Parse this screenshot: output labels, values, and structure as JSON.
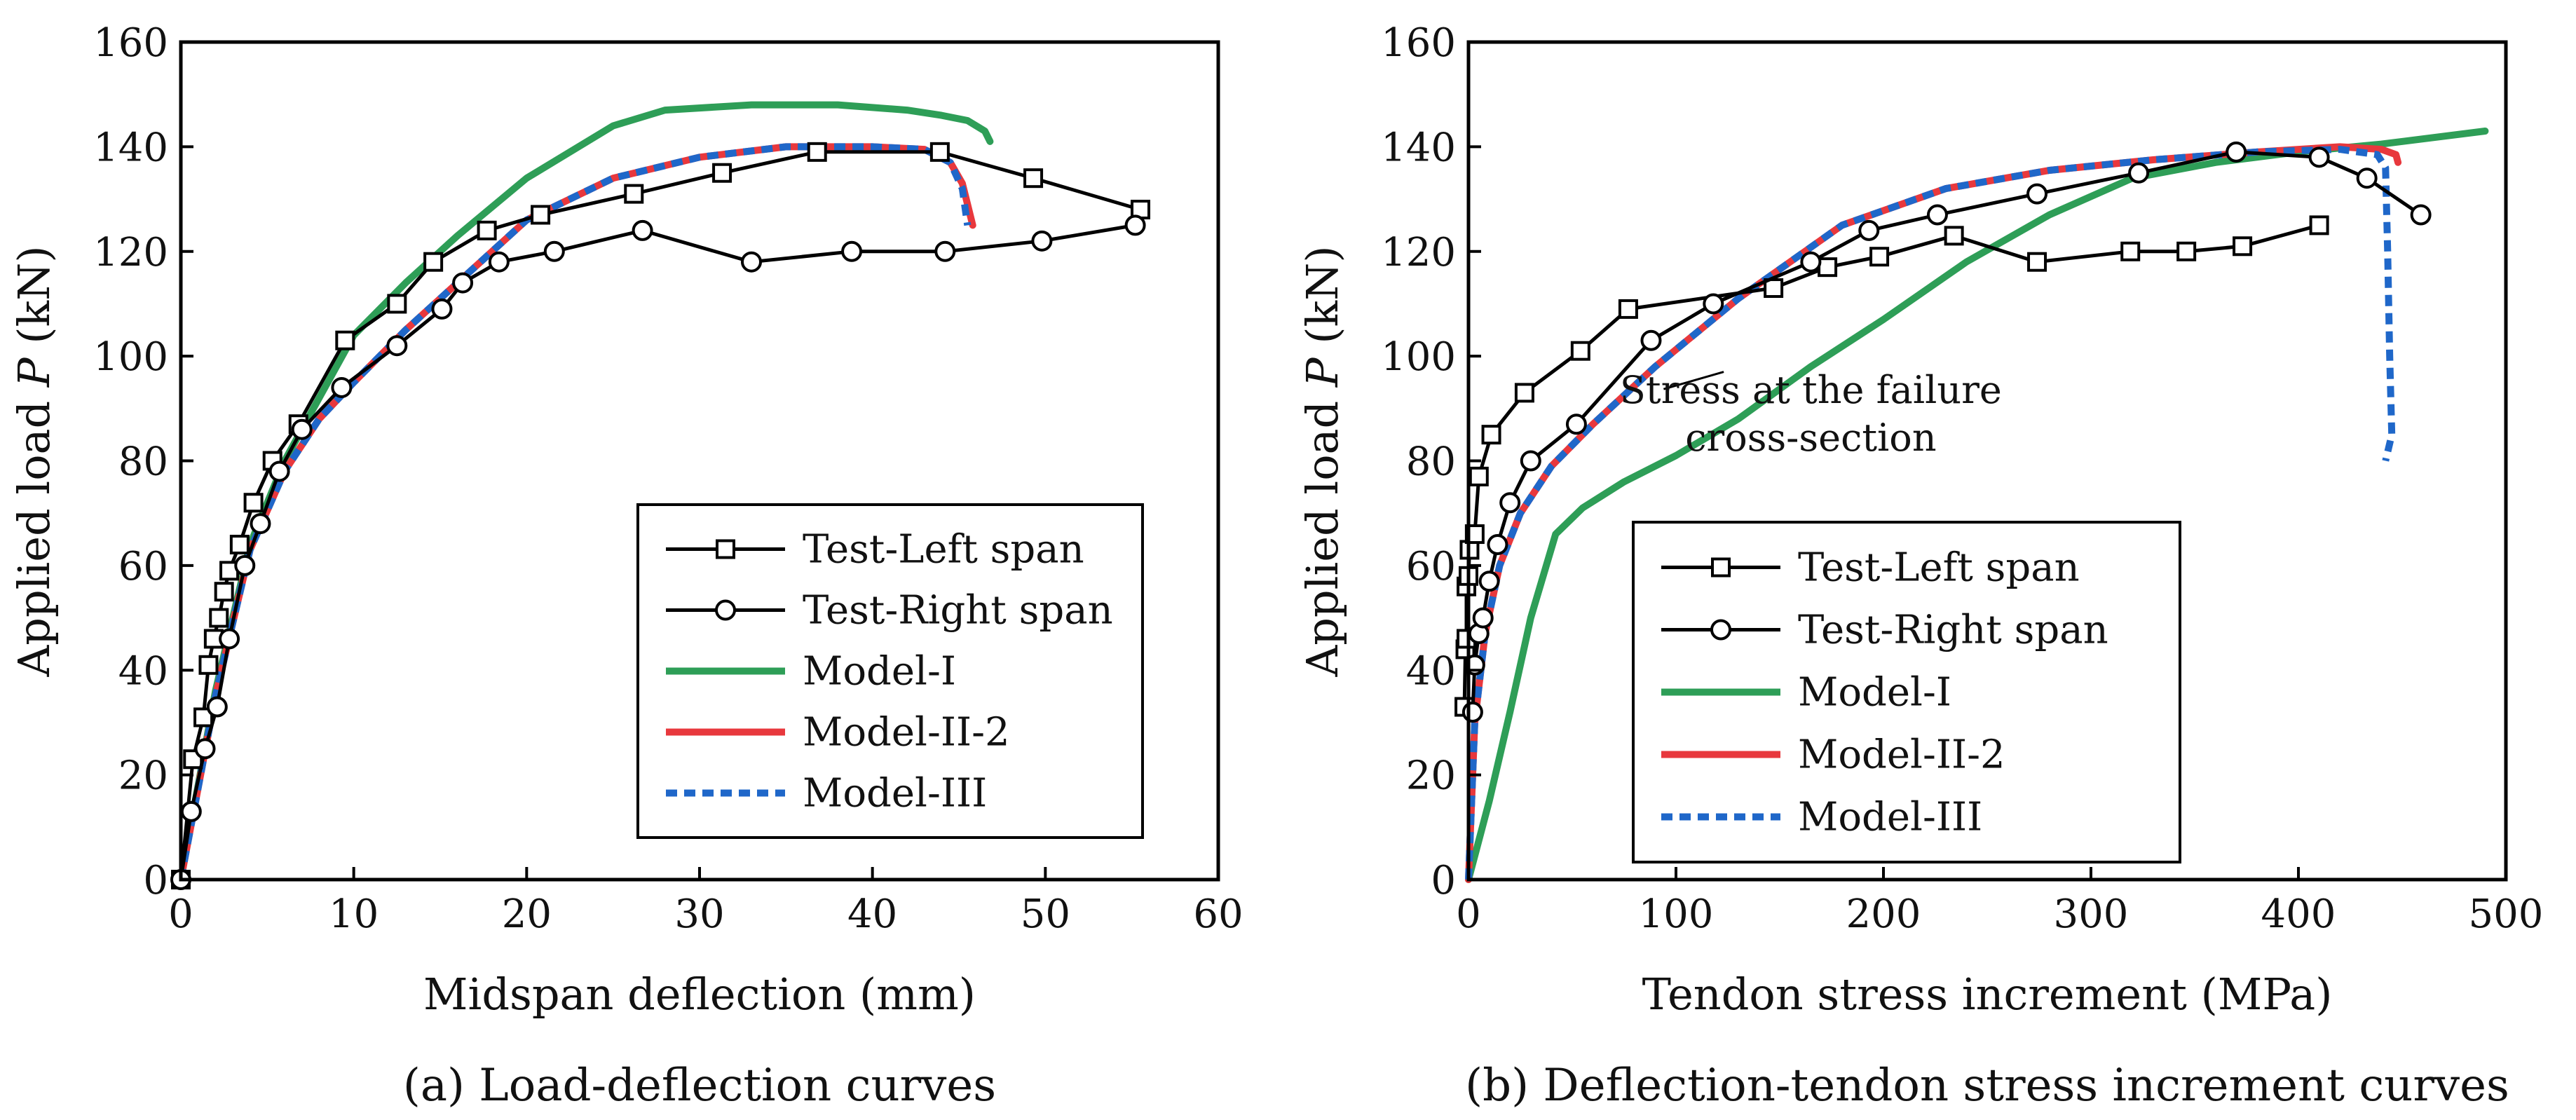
{
  "chart_data": [
    {
      "type": "line",
      "caption": "(a) Load-deflection curves",
      "xlabel": "Midspan deflection (mm)",
      "ylabel_pre": "Applied load ",
      "ylabel_var": "P",
      "ylabel_post": " (kN)",
      "xlim": [
        0,
        60
      ],
      "ylim": [
        0,
        160
      ],
      "xticks": [
        0,
        10,
        20,
        30,
        40,
        50,
        60
      ],
      "yticks": [
        0,
        20,
        40,
        60,
        80,
        100,
        120,
        140,
        160
      ],
      "legend_position": "bottom-right",
      "series": [
        {
          "name": "Test-Left span",
          "color": "#000000",
          "marker": "square",
          "x": [
            0,
            0.7,
            1.3,
            1.6,
            1.9,
            2.2,
            2.5,
            2.8,
            3.4,
            4.2,
            5.3,
            6.8,
            9.5,
            12.5,
            14.6,
            17.7,
            20.8,
            26.2,
            31.3,
            36.8,
            43.9,
            49.3,
            55.5
          ],
          "y": [
            0,
            23,
            31,
            41,
            46,
            50,
            55,
            59,
            64,
            72,
            80,
            87,
            103,
            110,
            118,
            124,
            127,
            131,
            135,
            139,
            139,
            134,
            128
          ]
        },
        {
          "name": "Test-Right span",
          "color": "#000000",
          "marker": "circle",
          "x": [
            0,
            0.6,
            1.4,
            2.1,
            2.8,
            3.7,
            4.6,
            5.7,
            7.0,
            9.3,
            12.5,
            15.1,
            16.3,
            18.4,
            21.6,
            26.7,
            33.0,
            38.8,
            44.2,
            49.8,
            55.2
          ],
          "y": [
            0,
            13,
            25,
            33,
            46,
            60,
            68,
            78,
            86,
            94,
            102,
            109,
            114,
            118,
            120,
            124,
            118,
            120,
            120,
            122,
            125
          ]
        },
        {
          "name": "Model-I",
          "color": "#2e9e57",
          "dash": "solid",
          "x": [
            0,
            2,
            4,
            6,
            8,
            10,
            13,
            16,
            20,
            25,
            28,
            33,
            38,
            42,
            44,
            45.5,
            46.5,
            46.8
          ],
          "y": [
            0,
            36,
            64,
            80,
            92,
            104,
            114,
            123,
            134,
            144,
            147,
            148,
            148,
            147,
            146,
            145,
            143,
            141
          ]
        },
        {
          "name": "Model-II-2",
          "color": "#e8383d",
          "dash": "solid",
          "x": [
            0,
            2,
            4,
            6,
            8,
            10,
            13,
            16,
            20,
            25,
            30,
            35,
            40,
            43,
            44.5,
            45.2,
            45.5,
            45.8
          ],
          "y": [
            0,
            35,
            63,
            78,
            88,
            95,
            105,
            114,
            126,
            134,
            138,
            140,
            140,
            139.5,
            137,
            133,
            129,
            125
          ]
        },
        {
          "name": "Model-III",
          "color": "#1f67c9",
          "dash": "dashed",
          "x": [
            0,
            2,
            4,
            6,
            8,
            10,
            13,
            16,
            20,
            25,
            30,
            35,
            40,
            43,
            44.5,
            45.2,
            45.5
          ],
          "y": [
            0,
            35,
            63,
            78,
            88,
            95,
            105,
            114,
            126,
            134,
            138,
            140,
            140,
            139.5,
            137,
            132,
            125
          ]
        }
      ]
    },
    {
      "type": "line",
      "caption": "(b) Deflection-tendon stress increment curves",
      "xlabel": "Tendon stress increment (MPa)",
      "ylabel_pre": "Applied load ",
      "ylabel_var": "P",
      "ylabel_post": " (kN)",
      "xlim": [
        0,
        500
      ],
      "ylim": [
        0,
        160
      ],
      "xticks": [
        0,
        100,
        200,
        300,
        400,
        500
      ],
      "yticks": [
        0,
        20,
        40,
        60,
        80,
        100,
        120,
        140,
        160
      ],
      "legend_position": "bottom-left",
      "annotation": {
        "line1": "Stress at the failure",
        "line2": "cross-section",
        "x": 165,
        "y": 87,
        "arrow_to": [
          123,
          97
        ]
      },
      "series": [
        {
          "name": "Test-Left span",
          "color": "#000000",
          "marker": "square",
          "x": [
            -2,
            -1.5,
            -1,
            -1,
            0,
            0.5,
            3,
            5,
            11,
            27,
            54,
            77,
            147,
            173,
            198,
            234,
            274,
            319,
            346,
            373,
            410
          ],
          "y": [
            33,
            44,
            46,
            56,
            58,
            63,
            66,
            77,
            85,
            93,
            101,
            109,
            113,
            117,
            119,
            123,
            118,
            120,
            120,
            121,
            125
          ]
        },
        {
          "name": "Test-Right span",
          "color": "#000000",
          "marker": "circle",
          "x": [
            2,
            3,
            5,
            7,
            10,
            14,
            20,
            30,
            52,
            88,
            118,
            165,
            193,
            226,
            274,
            323,
            370,
            410,
            433,
            459
          ],
          "y": [
            32,
            41,
            47,
            50,
            57,
            64,
            72,
            80,
            87,
            103,
            110,
            118,
            124,
            127,
            131,
            135,
            139,
            138,
            134,
            127
          ]
        },
        {
          "name": "Model-I",
          "color": "#2e9e57",
          "dash": "solid",
          "x": [
            0,
            10,
            20,
            30,
            42,
            55,
            75,
            100,
            130,
            165,
            200,
            240,
            280,
            320,
            360,
            400,
            440,
            490
          ],
          "y": [
            0,
            15,
            32,
            50,
            66,
            71,
            76,
            81,
            88,
            98,
            107,
            118,
            127,
            134,
            137,
            139,
            140.5,
            143
          ]
        },
        {
          "name": "Model-II-2",
          "color": "#e8383d",
          "dash": "solid",
          "x": [
            0,
            3,
            8,
            15,
            25,
            40,
            60,
            90,
            130,
            180,
            230,
            280,
            330,
            380,
            420,
            440,
            447,
            448
          ],
          "y": [
            0,
            30,
            47,
            60,
            70,
            79,
            87,
            98,
            111,
            125,
            132,
            135.5,
            137.5,
            139,
            140,
            139.5,
            138.5,
            137
          ]
        },
        {
          "name": "Model-III",
          "color": "#1f67c9",
          "dash": "dashed",
          "x": [
            0,
            3,
            8,
            15,
            25,
            40,
            60,
            90,
            130,
            180,
            230,
            280,
            330,
            380,
            420,
            438,
            442,
            443,
            444,
            445,
            442
          ],
          "y": [
            0,
            30,
            47,
            60,
            70,
            79,
            87,
            98,
            111,
            125,
            132,
            135.5,
            137.5,
            139,
            139.5,
            138.5,
            136,
            120,
            100,
            85,
            80
          ]
        }
      ]
    }
  ]
}
